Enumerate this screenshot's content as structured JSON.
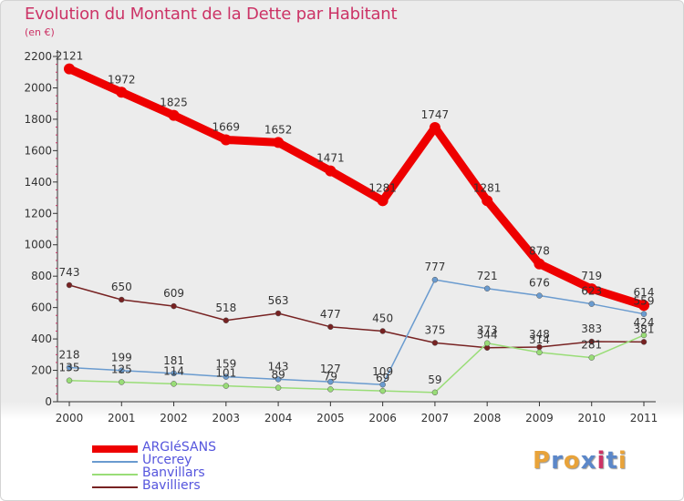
{
  "header": {
    "title": "Evolution du Montant de la Dette par Habitant",
    "subtitle": "(en €)"
  },
  "colors": {
    "title": "#cc3366",
    "legend_text": "#5555dd",
    "axis": "#333333"
  },
  "logo": {
    "text": "Proxiti",
    "letter_colors": [
      "#e8a33a",
      "#5b87c9",
      "#e8a33a",
      "#5b87c9",
      "#cc3366",
      "#5b87c9",
      "#e8a33a"
    ]
  },
  "chart_data": {
    "type": "line",
    "x": [
      "2000",
      "2001",
      "2002",
      "2003",
      "2004",
      "2005",
      "2006",
      "2007",
      "2008",
      "2009",
      "2010",
      "2011"
    ],
    "ylim": [
      0,
      2200
    ],
    "yticks": [
      0,
      200,
      400,
      600,
      800,
      1000,
      1200,
      1400,
      1600,
      1800,
      2000,
      2200
    ],
    "xlabel": "",
    "ylabel": "",
    "grid": false,
    "legend_position": "bottom-left",
    "series": [
      {
        "name": "ARGIéSANS",
        "color": "#ee0000",
        "values": [
          2121,
          1972,
          1825,
          1669,
          1652,
          1471,
          1281,
          1747,
          1281,
          878,
          719,
          614
        ],
        "labels": [
          "2121",
          "1972",
          "1825",
          "1669",
          "1652",
          "1471",
          "1281",
          "1747",
          "1281",
          "878",
          "719",
          "614"
        ]
      },
      {
        "name": "Urcerey",
        "color": "#6a9bcf",
        "values": [
          218,
          199,
          181,
          159,
          143,
          127,
          109,
          777,
          721,
          676,
          623,
          559
        ],
        "labels": [
          "218",
          "199",
          "181",
          "159",
          "143",
          "127",
          "109",
          "777",
          "721",
          "676",
          "623",
          "559"
        ]
      },
      {
        "name": "Banvillars",
        "color": "#99dd77",
        "values": [
          135,
          125,
          114,
          101,
          89,
          79,
          69,
          59,
          373,
          314,
          281,
          424
        ],
        "labels": [
          "135",
          "125",
          "114",
          "101",
          "89",
          "79",
          "69",
          "59",
          "373",
          "314",
          "281",
          "424"
        ]
      },
      {
        "name": "Bavilliers",
        "color": "#772222",
        "values": [
          743,
          650,
          609,
          518,
          563,
          477,
          450,
          375,
          344,
          348,
          383,
          381
        ],
        "labels": [
          "743",
          "650",
          "609",
          "518",
          "563",
          "477",
          "450",
          "375",
          "344",
          "348",
          "383",
          "381"
        ]
      }
    ]
  }
}
